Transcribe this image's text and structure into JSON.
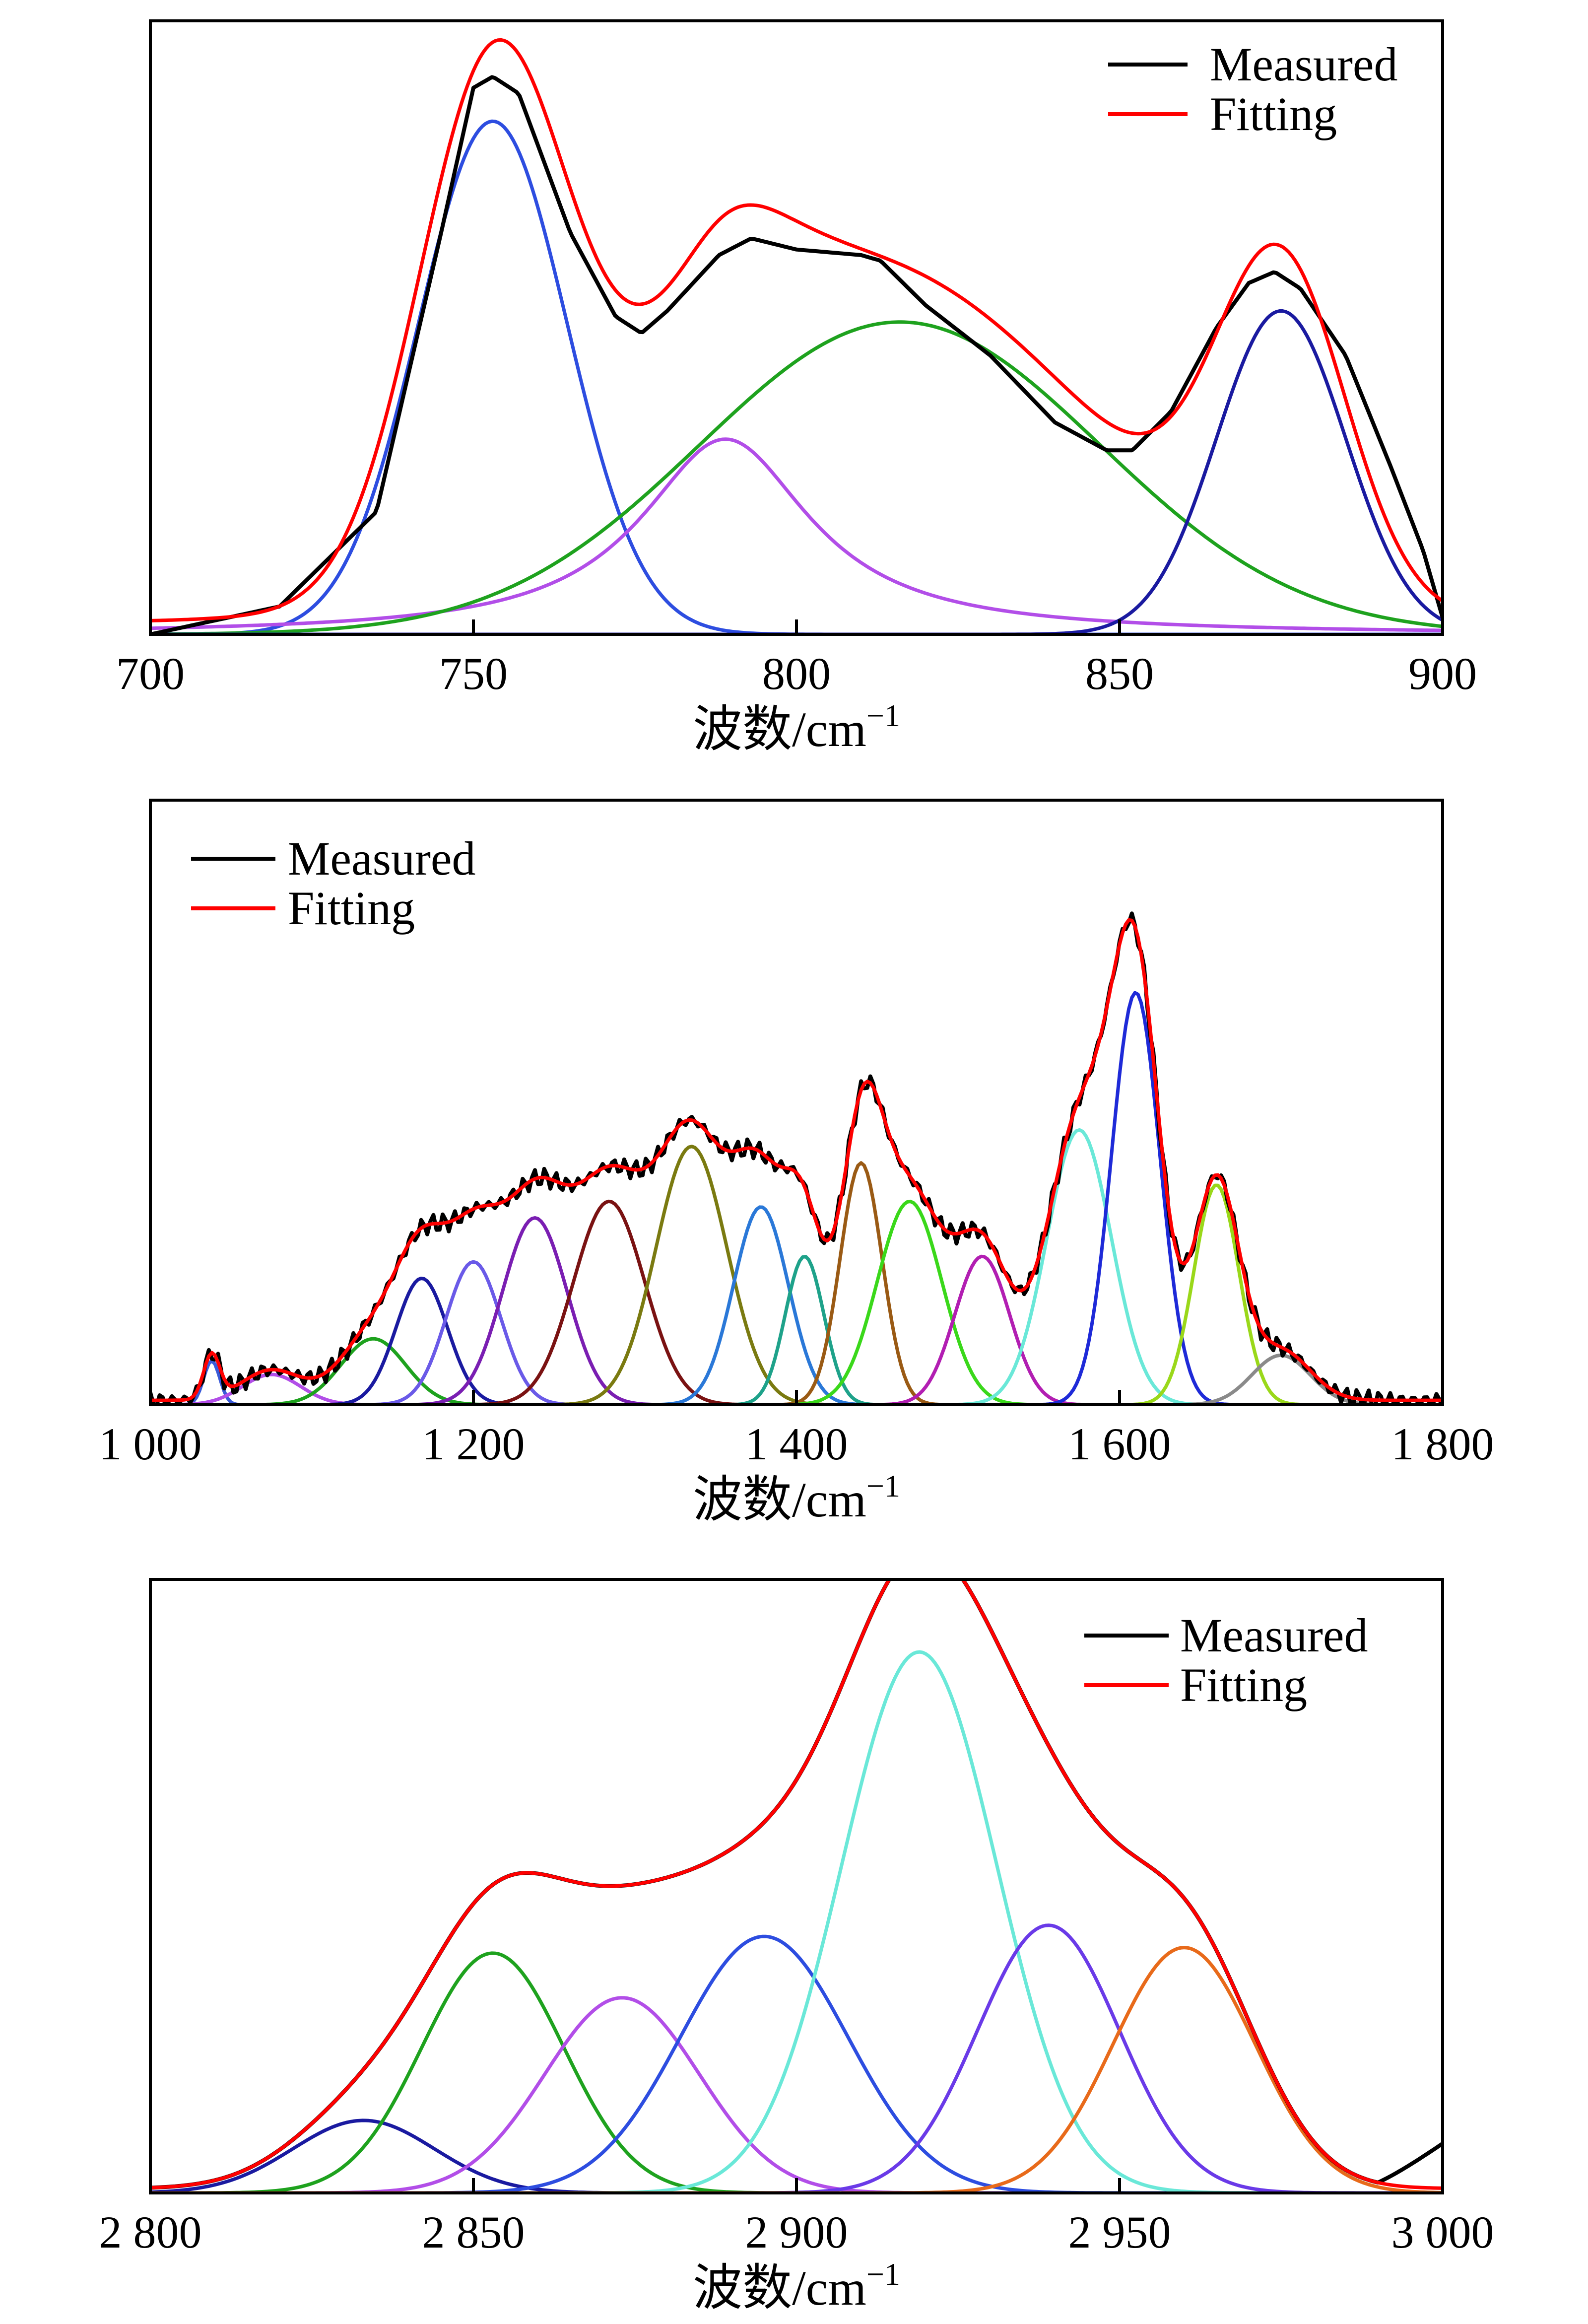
{
  "chart_data": [
    {
      "type": "line",
      "xlabel": "波数/cm",
      "xlabel_sup": "−1",
      "xlim": [
        700,
        900
      ],
      "xticks": [
        700,
        750,
        800,
        850,
        900
      ],
      "xtick_labels": [
        "700",
        "750",
        "800",
        "850",
        "900"
      ],
      "ylim": [
        0,
        1.1
      ],
      "y_ticks_shown": false,
      "legend_position": "top-right",
      "legend": [
        {
          "label": "Measured",
          "color": "#000000"
        },
        {
          "label": "Fitting",
          "color": "#ff0000"
        }
      ],
      "measured": {
        "x": [
          700,
          720,
          735,
          745,
          750,
          753,
          757,
          765,
          772,
          776,
          780,
          788,
          793,
          800,
          810,
          813,
          820,
          830,
          840,
          848,
          852,
          858,
          865,
          870,
          874,
          878,
          885,
          892,
          897,
          900
        ],
        "y": [
          0.0,
          0.05,
          0.22,
          0.72,
          0.98,
          1.0,
          0.97,
          0.72,
          0.57,
          0.54,
          0.58,
          0.68,
          0.71,
          0.69,
          0.68,
          0.67,
          0.59,
          0.5,
          0.38,
          0.33,
          0.33,
          0.4,
          0.55,
          0.63,
          0.65,
          0.62,
          0.5,
          0.3,
          0.15,
          0.03
        ]
      },
      "components": [
        {
          "center": 753,
          "amplitude": 0.92,
          "width": 11.5,
          "color": "#2d4de0"
        },
        {
          "center": 789,
          "amplitude": 0.35,
          "width": 16,
          "color": "#b24ee8",
          "shape": "lorentz"
        },
        {
          "center": 816,
          "amplitude": 0.56,
          "width": 31,
          "color": "#1ea21e"
        },
        {
          "center": 875,
          "amplitude": 0.58,
          "width": 10,
          "color": "#1a1aa0"
        }
      ]
    },
    {
      "type": "line",
      "xlabel": "波数/cm",
      "xlabel_sup": "−1",
      "xlim": [
        1000,
        1800
      ],
      "xticks": [
        1000,
        1200,
        1400,
        1600,
        1800
      ],
      "xtick_labels": [
        "1 000",
        "1 200",
        "1 400",
        "1 600",
        "1 800"
      ],
      "ylim": [
        0,
        1.1
      ],
      "y_ticks_shown": false,
      "legend_position": "top-left",
      "legend": [
        {
          "label": "Measured",
          "color": "#000000"
        },
        {
          "label": "Fitting",
          "color": "#ff0000"
        }
      ],
      "components": [
        {
          "center": 1038,
          "amplitude": 0.08,
          "width": 5,
          "color": "#3a5ad8"
        },
        {
          "center": 1075,
          "amplitude": 0.055,
          "width": 18,
          "color": "#b24ee8"
        },
        {
          "center": 1138,
          "amplitude": 0.12,
          "width": 20,
          "color": "#1ea21e"
        },
        {
          "center": 1168,
          "amplitude": 0.23,
          "width": 16,
          "color": "#1a1aa0"
        },
        {
          "center": 1200,
          "amplitude": 0.26,
          "width": 17,
          "color": "#6a5ae8"
        },
        {
          "center": 1238,
          "amplitude": 0.34,
          "width": 20,
          "color": "#7a1eb2"
        },
        {
          "center": 1284,
          "amplitude": 0.37,
          "width": 22,
          "color": "#7a1212"
        },
        {
          "center": 1335,
          "amplitude": 0.47,
          "width": 22,
          "color": "#7a7a10"
        },
        {
          "center": 1378,
          "amplitude": 0.36,
          "width": 17,
          "color": "#2a78d8"
        },
        {
          "center": 1405,
          "amplitude": 0.27,
          "width": 12,
          "color": "#1ea28a"
        },
        {
          "center": 1440,
          "amplitude": 0.44,
          "width": 13,
          "color": "#9a5a14"
        },
        {
          "center": 1470,
          "amplitude": 0.37,
          "width": 20,
          "color": "#3ad81a"
        },
        {
          "center": 1515,
          "amplitude": 0.27,
          "width": 17,
          "color": "#b21eb2"
        },
        {
          "center": 1575,
          "amplitude": 0.5,
          "width": 20,
          "color": "#6ae8d8"
        },
        {
          "center": 1610,
          "amplitude": 0.75,
          "width": 15,
          "color": "#1e2ad8"
        },
        {
          "center": 1660,
          "amplitude": 0.4,
          "width": 14,
          "color": "#9ad81a"
        },
        {
          "center": 1700,
          "amplitude": 0.09,
          "width": 18,
          "color": "#8a8a8a"
        }
      ]
    },
    {
      "type": "line",
      "xlabel": "波数/cm",
      "xlabel_sup": "−1",
      "xlim": [
        2800,
        3000
      ],
      "xticks": [
        2800,
        2850,
        2900,
        2950,
        3000
      ],
      "xtick_labels": [
        "2 800",
        "2 850",
        "2 900",
        "2 950",
        "3 000"
      ],
      "ylim": [
        0,
        1.1
      ],
      "y_ticks_shown": false,
      "legend_position": "top-right",
      "legend": [
        {
          "label": "Measured",
          "color": "#000000"
        },
        {
          "label": "Fitting",
          "color": "#ff0000"
        }
      ],
      "components": [
        {
          "center": 2833,
          "amplitude": 0.13,
          "width": 11,
          "color": "#1a1aa0"
        },
        {
          "center": 2853,
          "amplitude": 0.43,
          "width": 11,
          "color": "#1ea21e"
        },
        {
          "center": 2873,
          "amplitude": 0.35,
          "width": 12,
          "color": "#b24ee8"
        },
        {
          "center": 2895,
          "amplitude": 0.46,
          "width": 13,
          "color": "#2d4de0"
        },
        {
          "center": 2919,
          "amplitude": 0.97,
          "width": 12,
          "color": "#6ae8d8"
        },
        {
          "center": 2939,
          "amplitude": 0.48,
          "width": 11,
          "color": "#6a3ae8"
        },
        {
          "center": 2960,
          "amplitude": 0.44,
          "width": 11,
          "color": "#e86a1a"
        }
      ]
    }
  ]
}
